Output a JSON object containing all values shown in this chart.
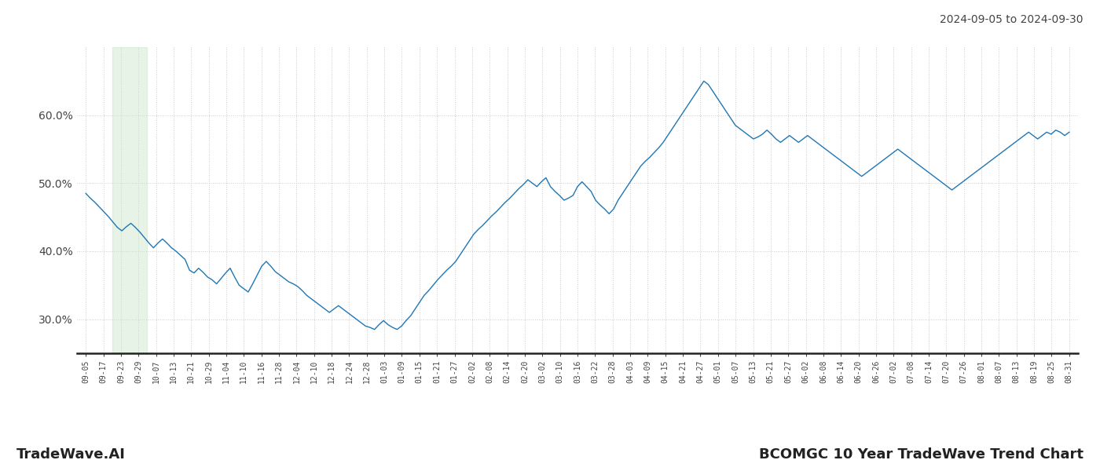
{
  "title_top_right": "2024-09-05 to 2024-09-30",
  "title_bottom_left": "TradeWave.AI",
  "title_bottom_right": "BCOMGC 10 Year TradeWave Trend Chart",
  "line_color": "#1f77b4",
  "line_width": 1.0,
  "shade_color": "#c8e6c9",
  "shade_alpha": 0.45,
  "background_color": "#ffffff",
  "grid_color": "#cccccc",
  "grid_linestyle": ":",
  "ylim": [
    25.0,
    70.0
  ],
  "yticks": [
    30.0,
    40.0,
    50.0,
    60.0
  ],
  "x_labels": [
    "09-05",
    "09-17",
    "09-23",
    "09-29",
    "10-07",
    "10-13",
    "10-21",
    "10-29",
    "11-04",
    "11-10",
    "11-16",
    "11-28",
    "12-04",
    "12-10",
    "12-18",
    "12-24",
    "12-28",
    "01-03",
    "01-09",
    "01-15",
    "01-21",
    "01-27",
    "02-02",
    "02-08",
    "02-14",
    "02-20",
    "03-02",
    "03-10",
    "03-16",
    "03-22",
    "03-28",
    "04-03",
    "04-09",
    "04-15",
    "04-21",
    "04-27",
    "05-01",
    "05-07",
    "05-13",
    "05-21",
    "05-27",
    "06-02",
    "06-08",
    "06-14",
    "06-20",
    "06-26",
    "07-02",
    "07-08",
    "07-14",
    "07-20",
    "07-26",
    "08-01",
    "08-07",
    "08-13",
    "08-19",
    "08-25",
    "08-31"
  ],
  "shade_start_label": "09-23",
  "shade_end_label": "09-29",
  "y_values": [
    48.5,
    47.8,
    47.2,
    46.5,
    45.8,
    45.1,
    44.3,
    43.5,
    43.0,
    43.6,
    44.1,
    43.5,
    42.8,
    42.0,
    41.2,
    40.5,
    41.2,
    41.8,
    41.2,
    40.5,
    40.0,
    39.4,
    38.8,
    37.2,
    36.8,
    37.5,
    36.9,
    36.2,
    35.8,
    35.2,
    36.0,
    36.8,
    37.5,
    36.2,
    35.0,
    34.5,
    34.0,
    35.2,
    36.5,
    37.8,
    38.5,
    37.8,
    37.0,
    36.5,
    36.0,
    35.5,
    35.2,
    34.8,
    34.2,
    33.5,
    33.0,
    32.5,
    32.0,
    31.5,
    31.0,
    31.5,
    32.0,
    31.5,
    31.0,
    30.5,
    30.0,
    29.5,
    29.0,
    28.8,
    28.5,
    29.2,
    29.8,
    29.2,
    28.8,
    28.5,
    29.0,
    29.8,
    30.5,
    31.5,
    32.5,
    33.5,
    34.2,
    35.0,
    35.8,
    36.5,
    37.2,
    37.8,
    38.5,
    39.5,
    40.5,
    41.5,
    42.5,
    43.2,
    43.8,
    44.5,
    45.2,
    45.8,
    46.5,
    47.2,
    47.8,
    48.5,
    49.2,
    49.8,
    50.5,
    50.0,
    49.5,
    50.2,
    50.8,
    49.5,
    48.8,
    48.2,
    47.5,
    47.8,
    48.2,
    49.5,
    50.2,
    49.5,
    48.8,
    47.5,
    46.8,
    46.2,
    45.5,
    46.2,
    47.5,
    48.5,
    49.5,
    50.5,
    51.5,
    52.5,
    53.2,
    53.8,
    54.5,
    55.2,
    56.0,
    57.0,
    58.0,
    59.0,
    60.0,
    61.0,
    62.0,
    63.0,
    64.0,
    65.0,
    64.5,
    63.5,
    62.5,
    61.5,
    60.5,
    59.5,
    58.5,
    58.0,
    57.5,
    57.0,
    56.5,
    56.8,
    57.2,
    57.8,
    57.2,
    56.5,
    56.0,
    56.5,
    57.0,
    56.5,
    56.0,
    56.5,
    57.0,
    56.5,
    56.0,
    55.5,
    55.0,
    54.5,
    54.0,
    53.5,
    53.0,
    52.5,
    52.0,
    51.5,
    51.0,
    51.5,
    52.0,
    52.5,
    53.0,
    53.5,
    54.0,
    54.5,
    55.0,
    54.5,
    54.0,
    53.5,
    53.0,
    52.5,
    52.0,
    51.5,
    51.0,
    50.5,
    50.0,
    49.5,
    49.0,
    49.5,
    50.0,
    50.5,
    51.0,
    51.5,
    52.0,
    52.5,
    53.0,
    53.5,
    54.0,
    54.5,
    55.0,
    55.5,
    56.0,
    56.5,
    57.0,
    57.5,
    57.0,
    56.5,
    57.0,
    57.5,
    57.2,
    57.8,
    57.5,
    57.0,
    57.5
  ]
}
